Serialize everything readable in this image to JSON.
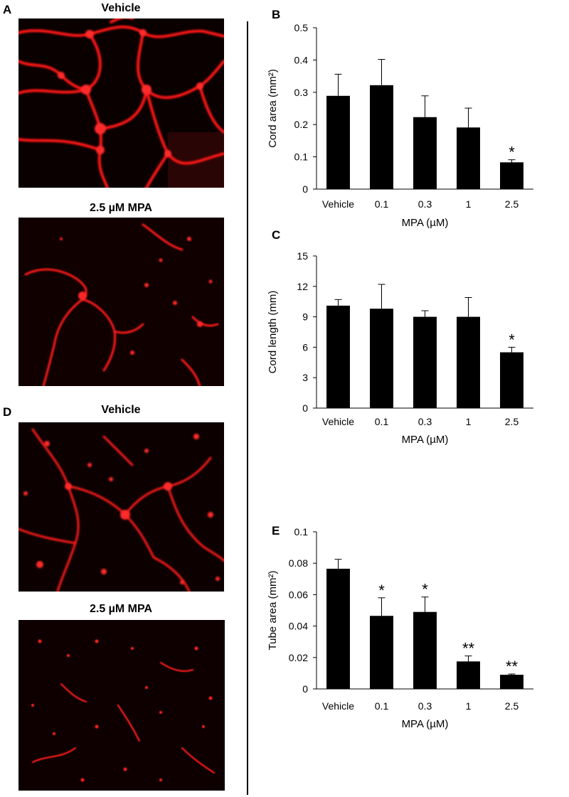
{
  "panels": {
    "A": {
      "letter": "A",
      "top_title": "Vehicle",
      "bottom_title": "2.5 µM MPA"
    },
    "D": {
      "letter": "D",
      "top_title": "Vehicle",
      "bottom_title": "2.5 µM MPA"
    }
  },
  "colors": {
    "bar": "#000000",
    "fluorescence": "#ff1a1a",
    "background": "#ffffff"
  },
  "chart_data": [
    {
      "id": "B",
      "letter": "B",
      "type": "bar",
      "categories": [
        "Vehicle",
        "0.1",
        "0.3",
        "1",
        "2.5"
      ],
      "values": [
        0.289,
        0.322,
        0.223,
        0.191,
        0.083
      ],
      "errors": [
        0.067,
        0.08,
        0.066,
        0.06,
        0.008
      ],
      "annotations": [
        "",
        "",
        "",
        "",
        "*"
      ],
      "xlabel": "MPA (µM)",
      "ylabel": "Cord area (mm²)",
      "ylim": [
        0,
        0.5
      ],
      "yticks": [
        0,
        0.1,
        0.2,
        0.3,
        0.4,
        0.5
      ],
      "yticklabels": [
        "0",
        "0.1",
        "0.2",
        "0.3",
        "0.4",
        "0.5"
      ],
      "grid": false
    },
    {
      "id": "C",
      "letter": "C",
      "type": "bar",
      "categories": [
        "Vehicle",
        "0.1",
        "0.3",
        "1",
        "2.5"
      ],
      "values": [
        10.1,
        9.8,
        9.0,
        9.0,
        5.5
      ],
      "errors": [
        0.6,
        2.4,
        0.6,
        1.9,
        0.5
      ],
      "annotations": [
        "",
        "",
        "",
        "",
        "*"
      ],
      "xlabel": "MPA (µM)",
      "ylabel": "Cord length (mm)",
      "ylim": [
        0,
        15
      ],
      "yticks": [
        0,
        3,
        6,
        9,
        12,
        15
      ],
      "yticklabels": [
        "0",
        "3",
        "6",
        "9",
        "12",
        "15"
      ],
      "grid": false
    },
    {
      "id": "E",
      "letter": "E",
      "type": "bar",
      "categories": [
        "Vehicle",
        "0.1",
        "0.3",
        "1",
        "2.5"
      ],
      "values": [
        0.0765,
        0.0465,
        0.049,
        0.0175,
        0.009
      ],
      "errors": [
        0.006,
        0.0115,
        0.0095,
        0.0035,
        0.0005
      ],
      "annotations": [
        "",
        "*",
        "*",
        "**",
        "**"
      ],
      "xlabel": "MPA (µM)",
      "ylabel": "Tube area (mm²)",
      "ylim": [
        0,
        0.1
      ],
      "yticks": [
        0,
        0.02,
        0.04,
        0.06,
        0.08,
        0.1
      ],
      "yticklabels": [
        "0",
        "0.02",
        "0.04",
        "0.06",
        "0.08",
        "0.1"
      ],
      "grid": false
    }
  ]
}
